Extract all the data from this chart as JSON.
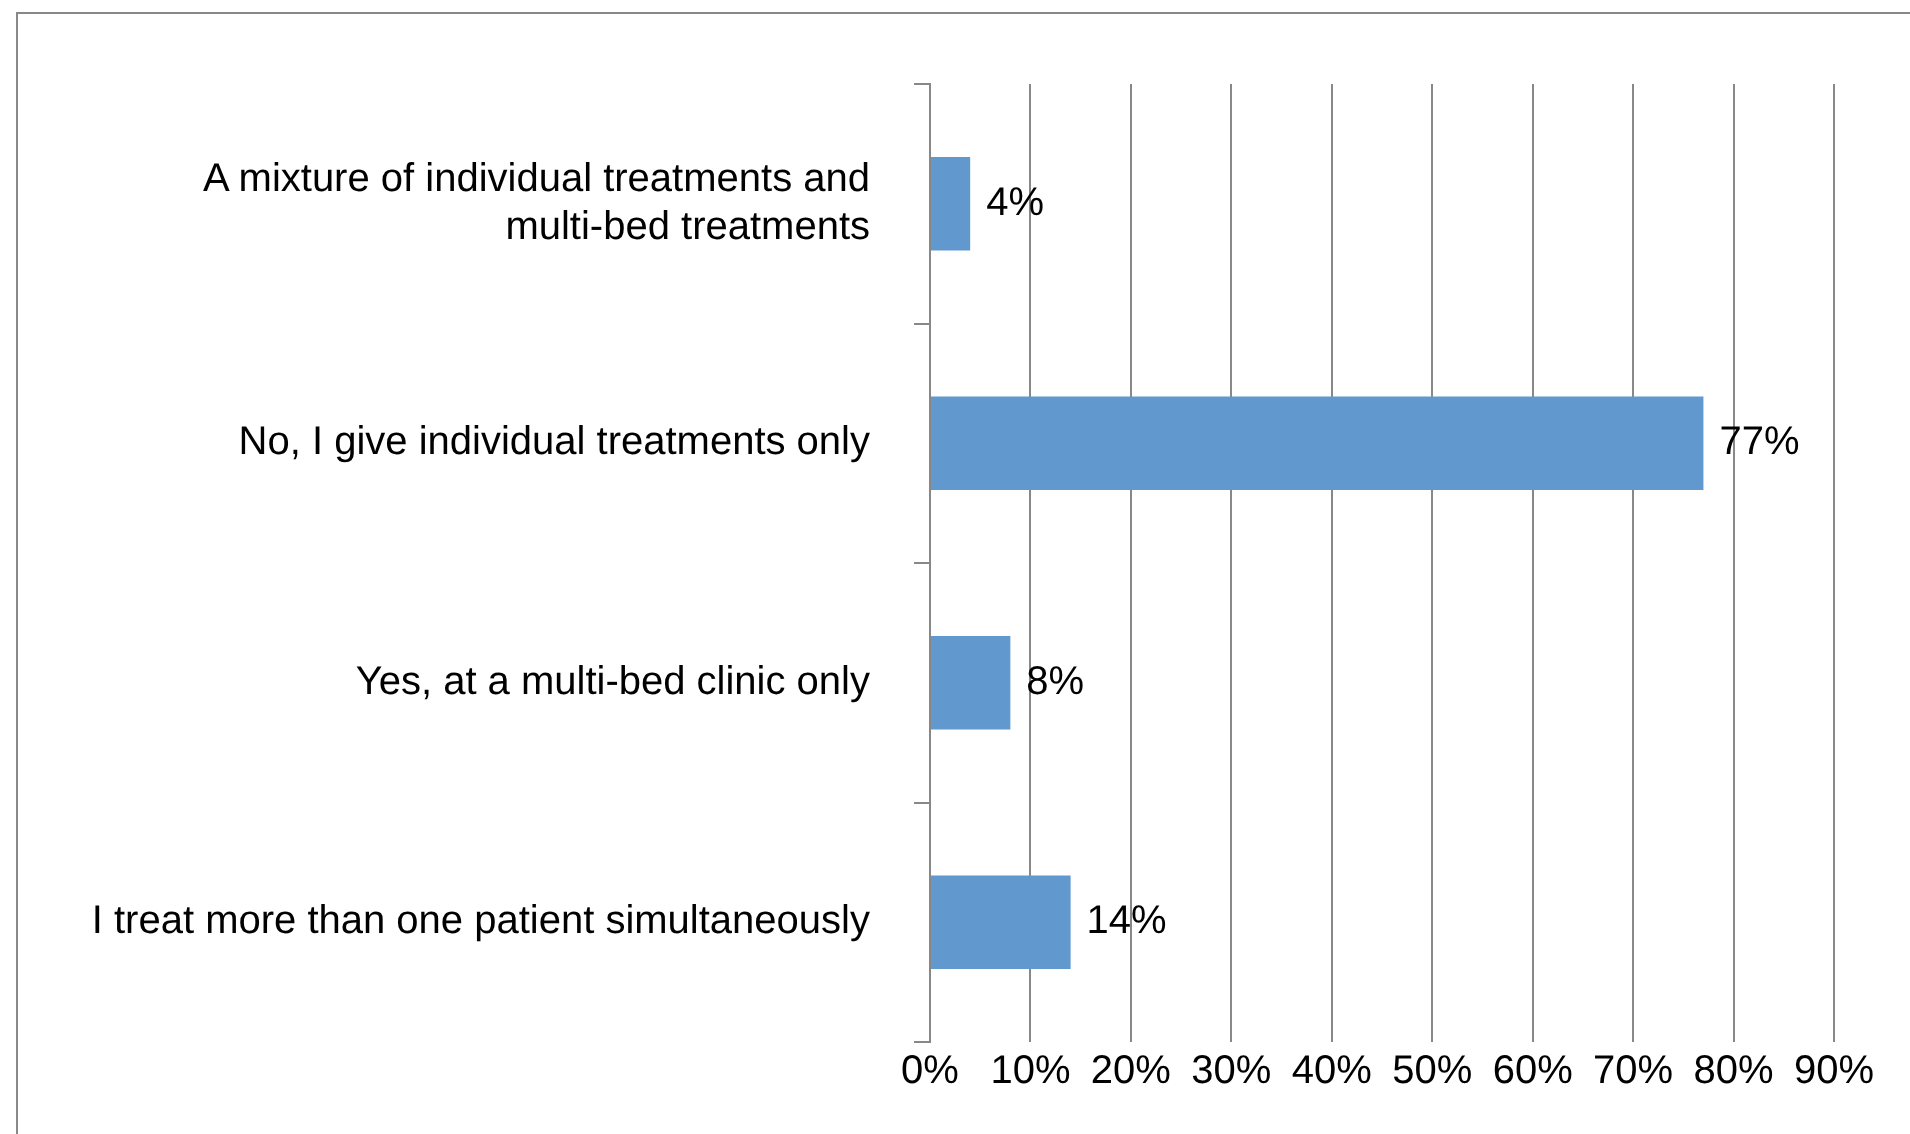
{
  "chart_data": {
    "type": "bar",
    "orientation": "horizontal",
    "categories": [
      "A mixture of individual treatments and multi-bed treatments",
      "No, I give individual treatments only",
      "Yes, at a multi-bed clinic only",
      "I treat more than one patient simultaneously"
    ],
    "values": [
      4,
      77,
      8,
      14
    ],
    "color": "#6199cf",
    "value_labels": [
      "4%",
      "77%",
      "8%",
      "14%"
    ],
    "xlim": [
      0,
      90
    ],
    "xticks": [
      {
        "value": 0,
        "label": "0%"
      },
      {
        "value": 10,
        "label": "10%"
      },
      {
        "value": 20,
        "label": "20%"
      },
      {
        "value": 30,
        "label": "30%"
      },
      {
        "value": 40,
        "label": "40%"
      },
      {
        "value": 50,
        "label": "50%"
      },
      {
        "value": 60,
        "label": "60%"
      },
      {
        "value": 70,
        "label": "70%"
      },
      {
        "value": 80,
        "label": "80%"
      },
      {
        "value": 90,
        "label": "90%"
      }
    ],
    "grid": "x"
  }
}
